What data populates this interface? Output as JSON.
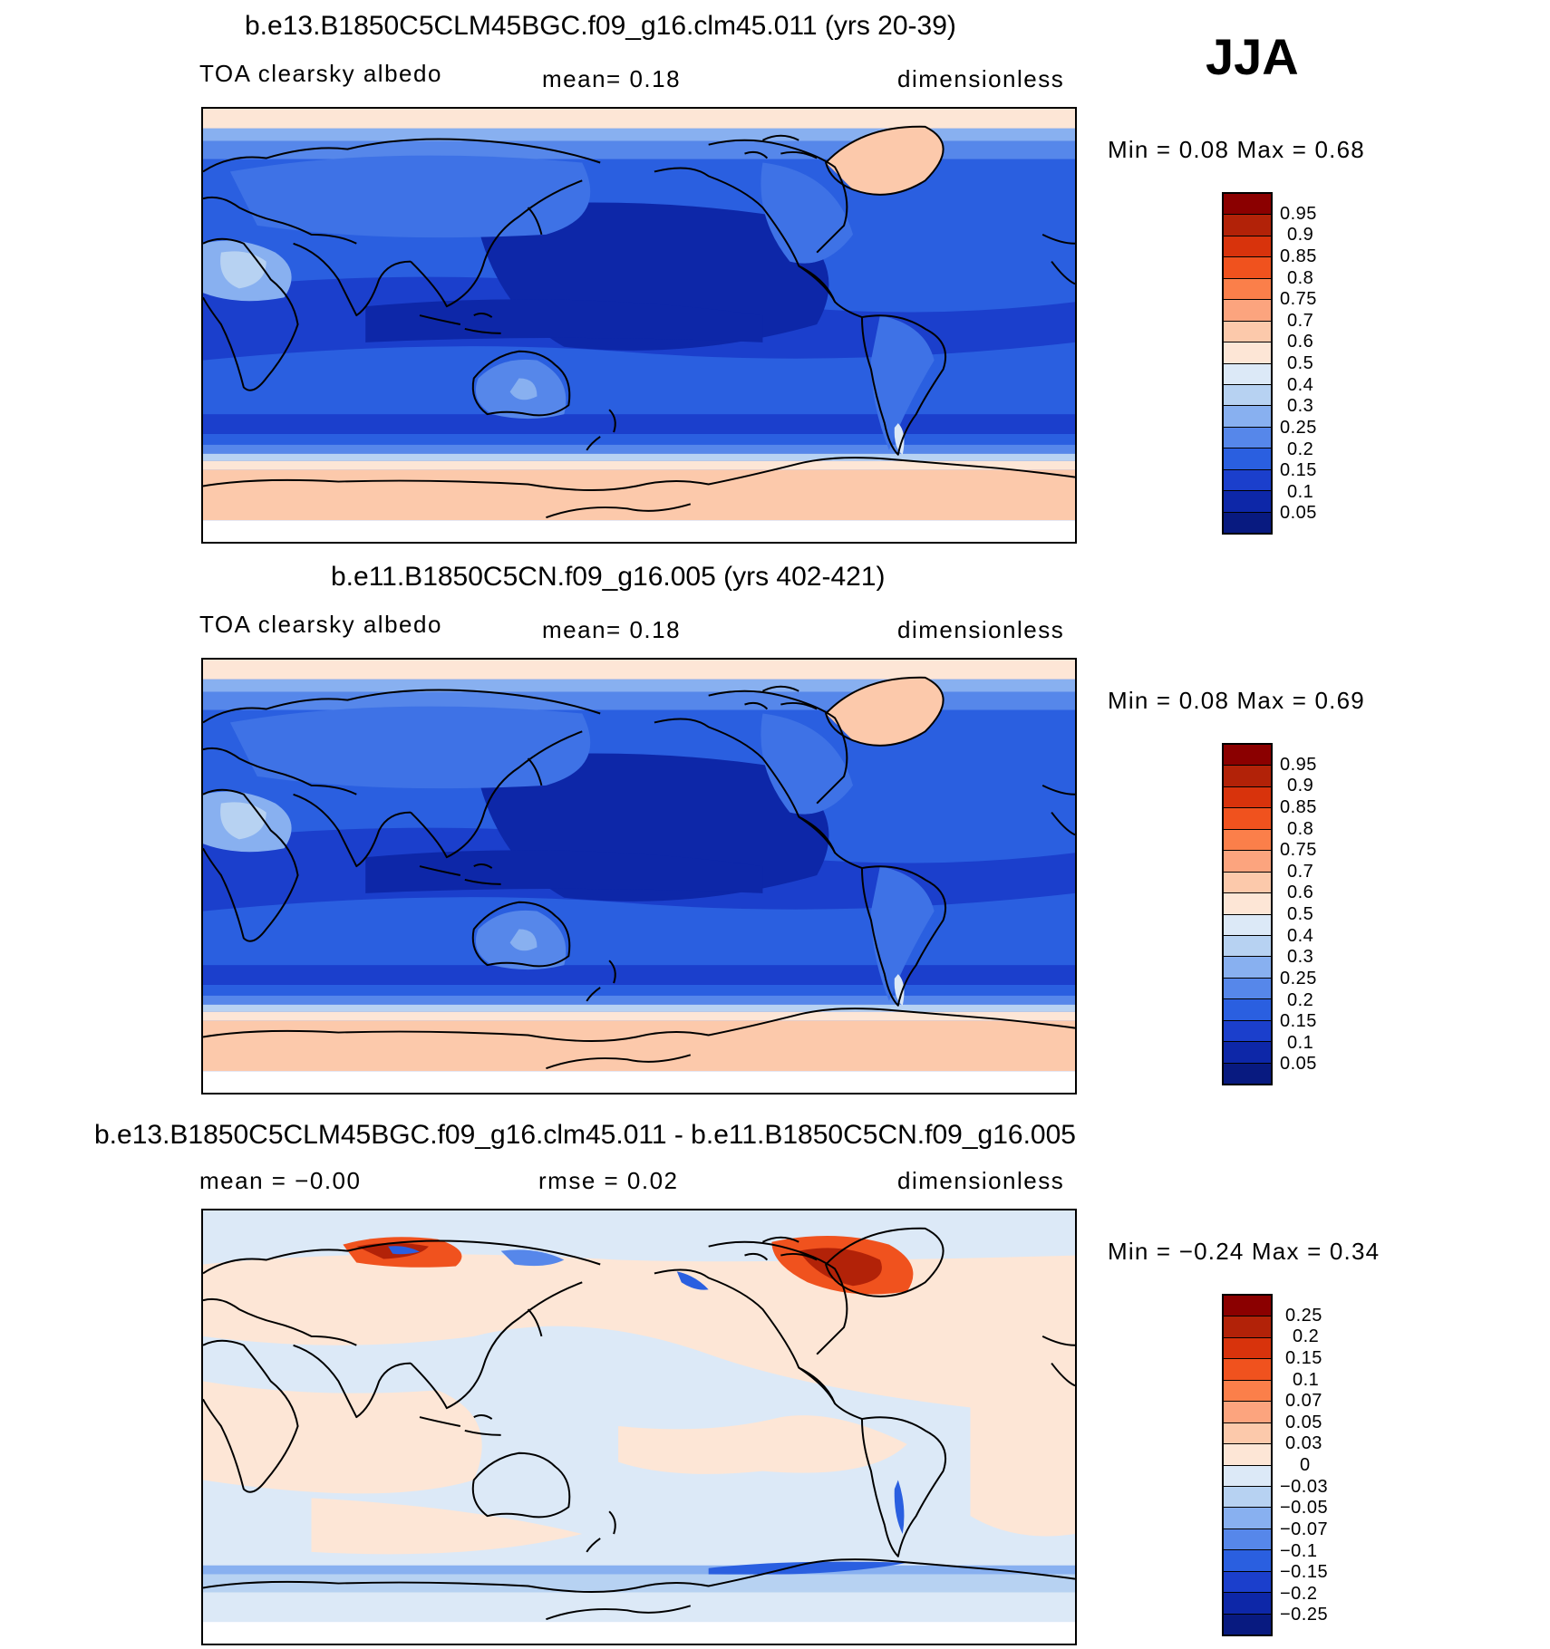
{
  "season": "JJA",
  "panels": [
    {
      "title": "b.e13.B1850C5CLM45BGC.f09_g16.clm45.011 (yrs 20-39)",
      "variable": "TOA clearsky albedo",
      "stat_text": "mean=    0.18",
      "units": "dimensionless",
      "minmax_text": "Min =     0.08  Max =     0.68",
      "kind": "abs"
    },
    {
      "title": "b.e11.B1850C5CN.f09_g16.005 (yrs 402-421)",
      "variable": "TOA clearsky albedo",
      "stat_text": "mean=    0.18",
      "units": "dimensionless",
      "minmax_text": "Min =     0.08  Max =     0.69",
      "kind": "abs"
    },
    {
      "title": "b.e13.B1850C5CLM45BGC.f09_g16.clm45.011 - b.e11.B1850C5CN.f09_g16.005",
      "mean_text": "mean =   −0.00",
      "rmse_text": "rmse =    0.02",
      "units": "dimensionless",
      "minmax_text": "Min =   −0.24  Max =     0.34",
      "kind": "diff"
    }
  ],
  "colorbar_abs": {
    "labels": [
      "0.95",
      "0.9",
      "0.85",
      "0.8",
      "0.75",
      "0.7",
      "0.6",
      "0.5",
      "0.4",
      "0.3",
      "0.25",
      "0.2",
      "0.15",
      "0.1",
      "0.05"
    ],
    "colors": [
      "#8b0000",
      "#b22208",
      "#d8330c",
      "#f0521e",
      "#fb7f4a",
      "#fca47e",
      "#fcc9ab",
      "#fde6d6",
      "#dce9f7",
      "#b7d2f2",
      "#88b0f0",
      "#5687ea",
      "#2a5fe0",
      "#1b3fcc",
      "#0d27a8",
      "#081a80"
    ]
  },
  "colorbar_diff": {
    "labels": [
      "0.25",
      "0.2",
      "0.15",
      "0.1",
      "0.07",
      "0.05",
      "0.03",
      "0",
      "−0.03",
      "−0.05",
      "−0.07",
      "−0.1",
      "−0.15",
      "−0.2",
      "−0.25"
    ],
    "colors": [
      "#8b0000",
      "#b22208",
      "#d8330c",
      "#f0521e",
      "#fb7f4a",
      "#fca47e",
      "#fcc9ab",
      "#fde6d6",
      "#dce9f7",
      "#b7d2f2",
      "#88b0f0",
      "#5687ea",
      "#2a5fe0",
      "#1b3fcc",
      "#0d27a8",
      "#081a80"
    ]
  }
}
